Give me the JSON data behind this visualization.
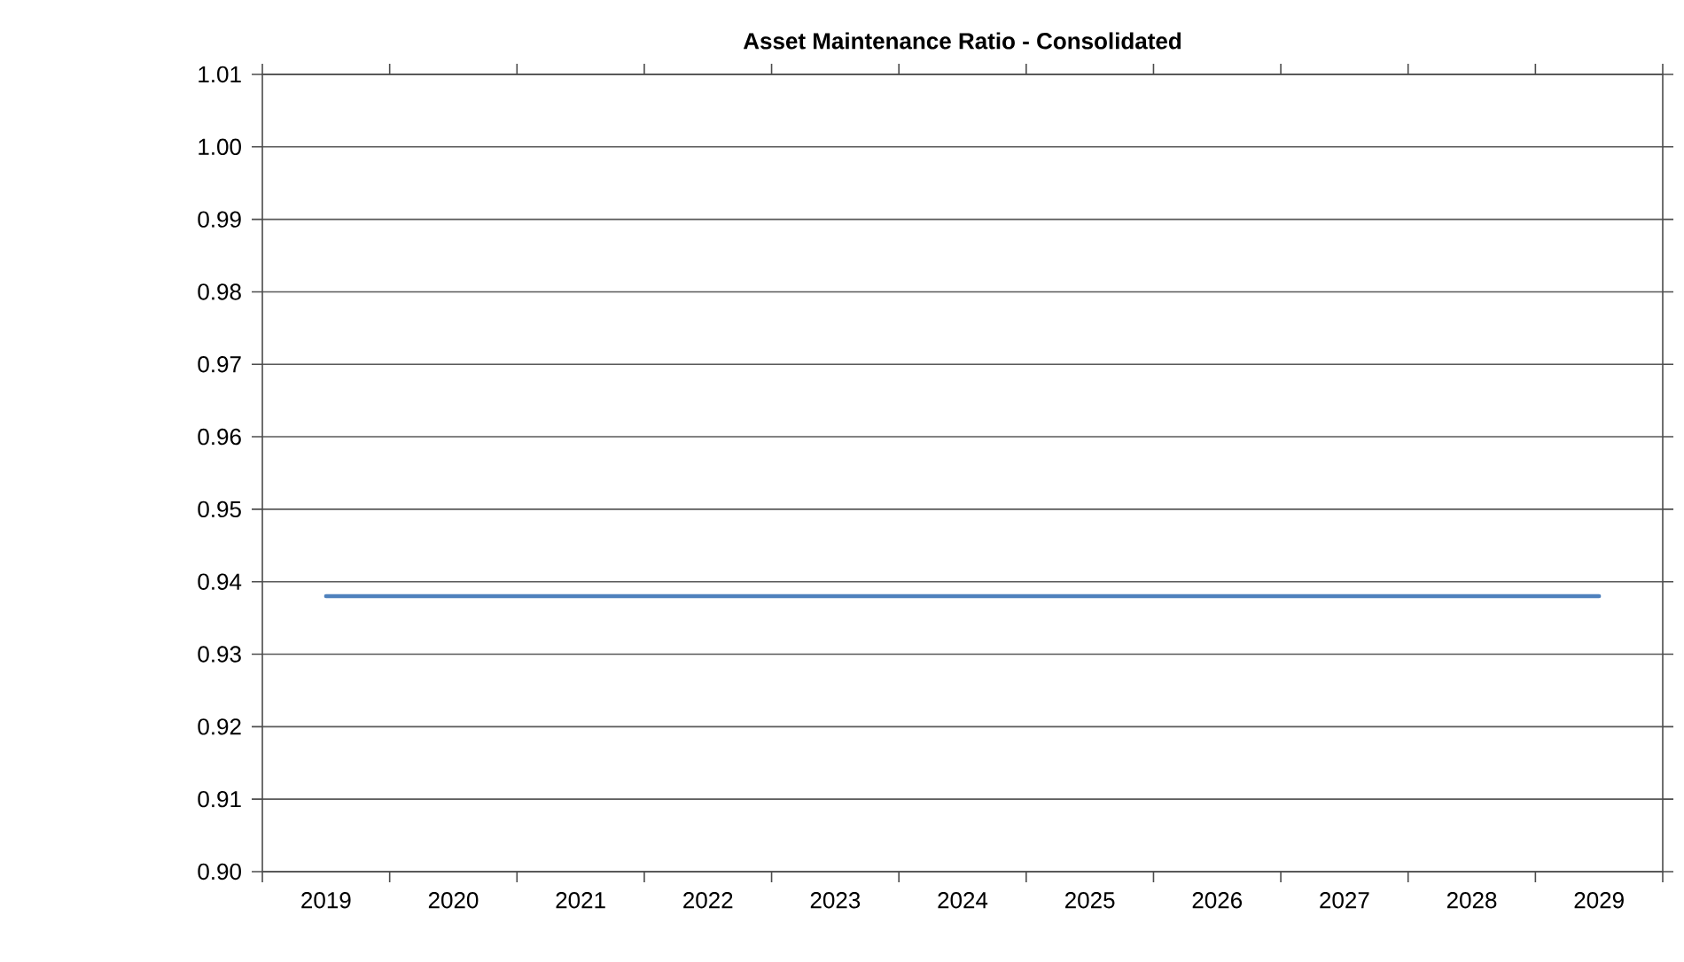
{
  "chart_data": {
    "type": "line",
    "title": "Asset Maintenance Ratio - Consolidated",
    "categories": [
      "2019",
      "2020",
      "2021",
      "2022",
      "2023",
      "2024",
      "2025",
      "2026",
      "2027",
      "2028",
      "2029"
    ],
    "series": [
      {
        "color": "#4f81bd",
        "values": [
          0.938,
          0.938,
          0.938,
          0.938,
          0.938,
          0.938,
          0.938,
          0.938,
          0.938,
          0.938,
          0.938
        ]
      }
    ],
    "ylim": [
      0.9,
      1.01
    ],
    "yticks": [
      {
        "value": 0.9,
        "label": "0.90"
      },
      0.91,
      0.92,
      0.93,
      0.94,
      0.95,
      0.96,
      0.97,
      0.98,
      0.99,
      {
        "value": 1.0,
        "label": "1.00"
      },
      1.01
    ],
    "grid": "y"
  }
}
